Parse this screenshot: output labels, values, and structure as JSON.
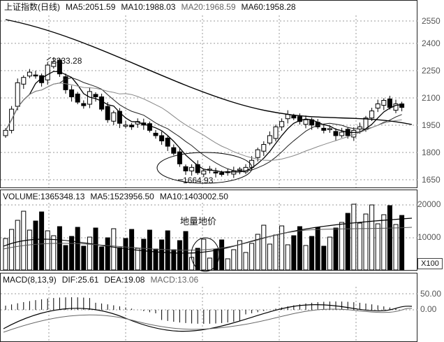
{
  "kline": {
    "title": "上证指数(日线)",
    "ma5": "MA5:2051.59",
    "ma10": "MA10:1988.03",
    "ma20": "MA20:1968.59",
    "ma60": "MA60:1958.28",
    "high_label": "2333.28",
    "low_label": "1664.93",
    "price_ticks": [
      "2550",
      "2400",
      "2250",
      "2100",
      "1950",
      "1800",
      "1650"
    ]
  },
  "volume": {
    "header": "VOLUME:1365348.13",
    "ma5": "MA5:1523956.50",
    "ma10": "MA10:1403002.50",
    "annotation": "地量地价",
    "ticks": [
      "20000",
      "10000"
    ],
    "unit": "X100"
  },
  "macd": {
    "header": "MACD(8,13,9)",
    "dif": "DIF:25.61",
    "dea": "DEA:19.08",
    "macd": "MACD:13.06",
    "ticks": [
      "50.00",
      "0.00"
    ]
  },
  "colors": {
    "up": "#ffffff",
    "down": "#000000",
    "grid": "#9a9a9a"
  }
}
